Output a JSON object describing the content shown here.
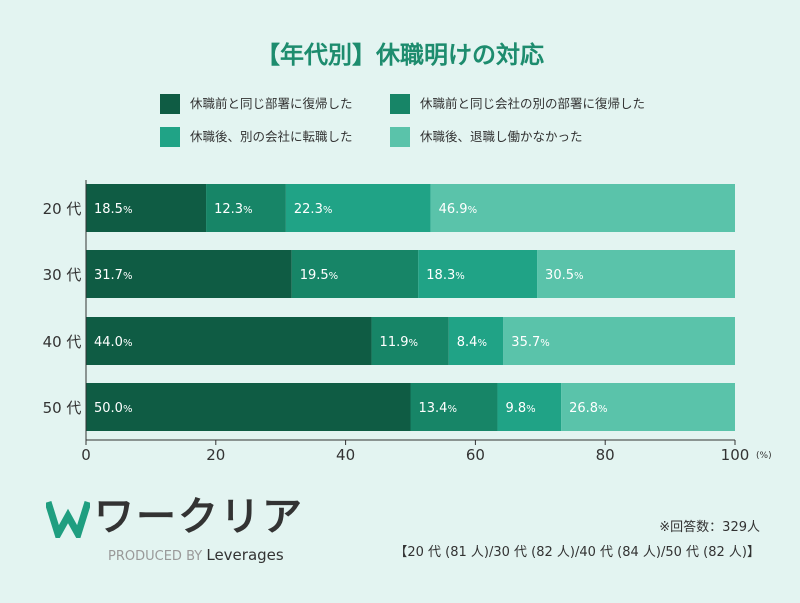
{
  "chart_data": {
    "type": "bar",
    "orientation": "horizontal",
    "stacked": true,
    "title": "【年代別】休職明けの対応",
    "categories": [
      "20 代",
      "30 代",
      "40 代",
      "50 代"
    ],
    "series": [
      {
        "name": "休職前と同じ部署に復帰した",
        "color": "#0f5c44",
        "values": [
          18.5,
          31.7,
          44.0,
          50.0
        ]
      },
      {
        "name": "休職前と同じ会社の別の部署に復帰した",
        "color": "#178567",
        "values": [
          12.3,
          19.5,
          11.9,
          13.4
        ]
      },
      {
        "name": "休職後、別の会社に転職した",
        "color": "#20a386",
        "values": [
          22.3,
          18.3,
          8.4,
          9.8
        ]
      },
      {
        "name": "休職後、退職し働かなかった",
        "color": "#5ac3aa",
        "values": [
          46.9,
          30.5,
          35.7,
          26.8
        ]
      }
    ],
    "xlim": [
      0,
      100
    ],
    "xticks": [
      0,
      20,
      40,
      60,
      80,
      100
    ],
    "xunit": "(%)",
    "legend": "top",
    "grid": false
  },
  "logo": {
    "name": "ワークリア",
    "produced_by": "PRODUCED BY",
    "brand": "Leverages"
  },
  "notes": {
    "respondents": "※回答数：329人",
    "breakdown": "【20 代 (81 人)/30 代 (82 人)/40 代 (84 人)/50 代 (82 人)】"
  }
}
